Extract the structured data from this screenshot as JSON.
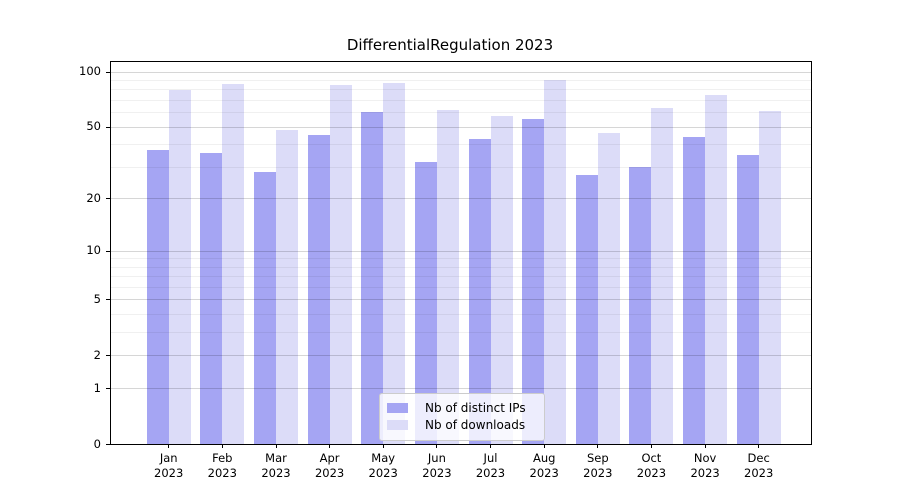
{
  "figure": {
    "background": "#ffffff"
  },
  "chart_data": {
    "type": "bar",
    "title": "DifferentialRegulation 2023",
    "categories": [
      "Jan",
      "Feb",
      "Mar",
      "Apr",
      "May",
      "Jun",
      "Jul",
      "Aug",
      "Sep",
      "Oct",
      "Nov",
      "Dec"
    ],
    "year_label": "2023",
    "series": [
      {
        "name": "Nb of distinct IPs",
        "color": "#a5a5f3",
        "values": [
          37,
          36,
          28,
          45,
          60,
          32,
          43,
          55,
          27,
          30,
          44,
          35
        ]
      },
      {
        "name": "Nb of downloads",
        "color": "#dcdcf8",
        "values": [
          79,
          86,
          48,
          85,
          87,
          62,
          57,
          90,
          46,
          63,
          75,
          61
        ]
      }
    ],
    "yscale": "log1p",
    "yticks": [
      0,
      1,
      2,
      5,
      10,
      20,
      50,
      100
    ],
    "grid_minor_ticks": [
      3,
      4,
      6,
      7,
      8,
      9,
      30,
      40,
      60,
      70,
      80,
      90
    ],
    "ylim": [
      0,
      113
    ],
    "xlabel": "",
    "ylabel": "",
    "grid": "on",
    "legend_position": "lower center"
  }
}
